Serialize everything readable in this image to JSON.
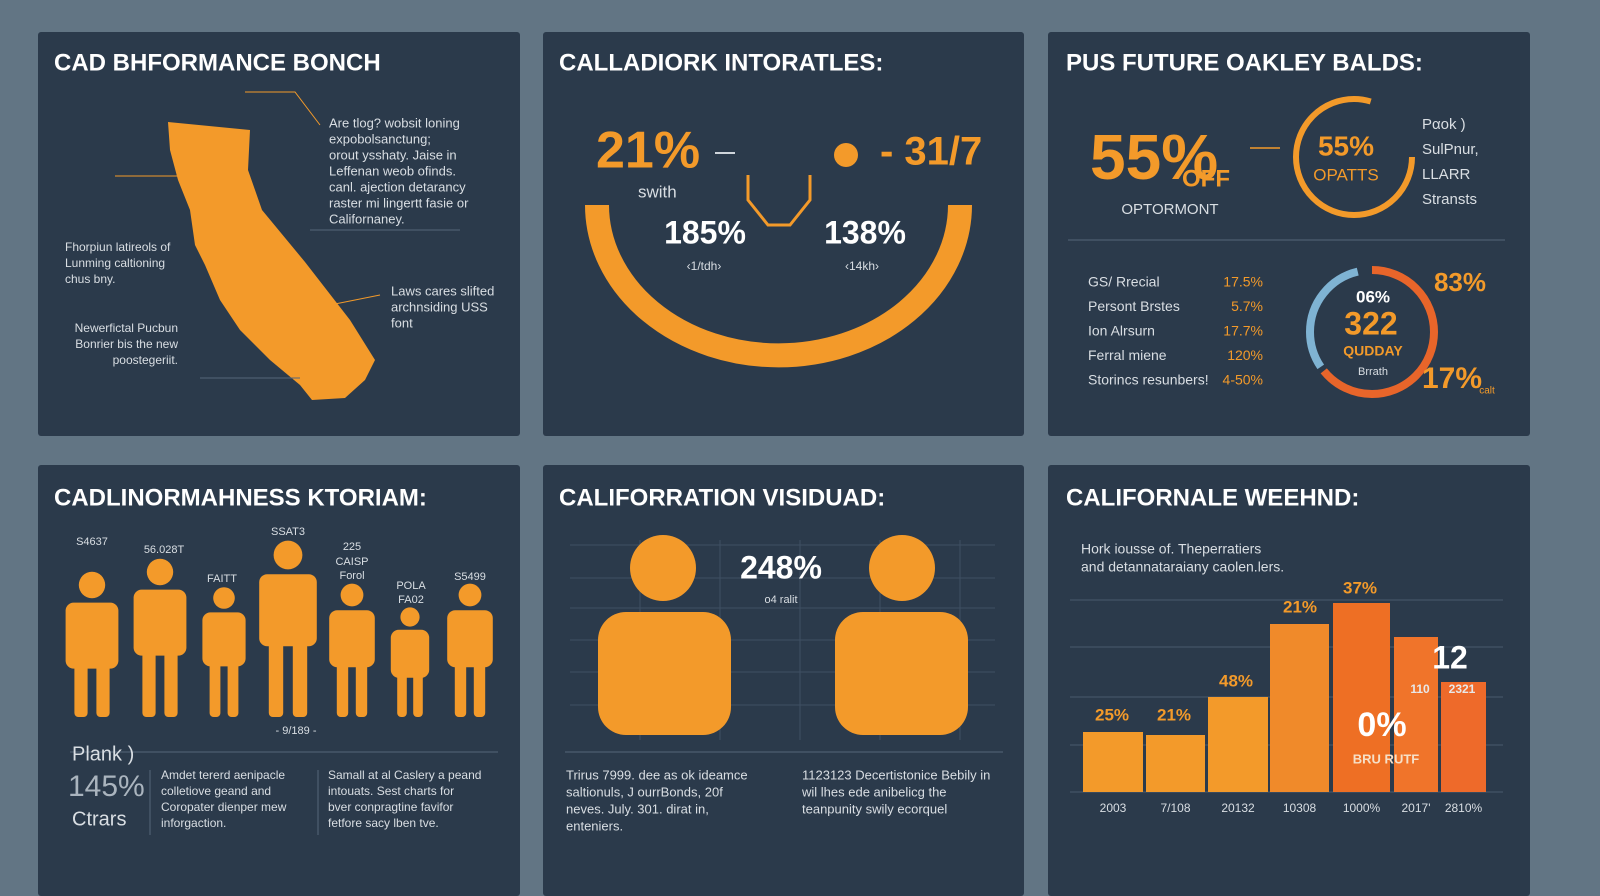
{
  "panels": [
    {
      "title": "CAD BHFORMANCE BONCH",
      "callout_top": [
        "Are tlog? wobsit loning",
        "expobolsanctung;",
        "orout ysshaty. Jaise in",
        "Leffenan weob ofinds.",
        "canl. ajection detarancy",
        "raster mi lingertt fasie or",
        "Californaney."
      ],
      "callout_left": [
        "Fhorpiun latireols of",
        "Lunming caltioning",
        "chus bny."
      ],
      "callout_right": [
        "Laws cares slifted",
        "archnsiding USS",
        "font"
      ],
      "callout_bottom": [
        "Newerfictal Pucbun",
        "Bonrier bis the new",
        "poostegeriit."
      ]
    },
    {
      "title": "CALLADIORK INTORATLES:",
      "big_left": "21%",
      "big_left_sub": "swith",
      "big_right": "- 31/7",
      "stat_left": "185%",
      "stat_left_sub": "‹1/tdh›",
      "stat_right": "138%",
      "stat_right_sub": "‹14kh›"
    },
    {
      "title": "PUS FUTURE OAKLEY BALDS:",
      "big": "55%",
      "big_off": "OFF",
      "big_label": "OPTORMONT",
      "ring_value": "55%",
      "ring_label": "OPATTS",
      "side": [
        "Pαok )",
        "SulPnur,",
        "LLARR",
        "Stransts"
      ],
      "rows": [
        [
          "GS/ Rrecial",
          "17.5%"
        ],
        [
          "Persont Brstes",
          "5.7%"
        ],
        [
          "Ion Alrsurn",
          "17.7%"
        ],
        [
          "Ferral miene",
          "120%"
        ],
        [
          "Storincs resunbers!",
          "4-50%"
        ]
      ],
      "donut_top": "83%",
      "donut_inner": "06%",
      "donut_value": "322",
      "donut_label": "QUDDAY",
      "donut_sub": "Brrath",
      "donut_bottom": "17%",
      "donut_bottom_sub": "calt"
    },
    {
      "title": "CADLINORMAHNESS KTORIAM:",
      "figure_labels": [
        "S4637",
        "56.028T",
        "FAITT",
        "SSAT3",
        "225",
        "CAISP",
        "Forol",
        "POLA",
        "FA02",
        "S5499"
      ],
      "axis_label": "- 9/189 -",
      "side": [
        "Plank )",
        "145%",
        "Ctrars"
      ],
      "text_left": [
        "Amdet tererd aenipacle",
        "colletiove geand and",
        "Coropater dienper mew",
        "inforgaction."
      ],
      "text_right": [
        "Samall at al Caslery a peand",
        "intouats. Sest charts for",
        "bver conpragtine favifor",
        "fetfore sacy lben tve."
      ]
    },
    {
      "title": "CALIFORRATION VISIDUAD:",
      "center_value": "248%",
      "center_sub": "o4 ralit",
      "text_left": [
        "Trirus 7999. dee as ok ideamce",
        "saltionuls, J ourrBonds, 20f",
        "neves. July. 301. dirat in,",
        "enteniers."
      ],
      "text_right": [
        "1123123 Decertistonice Bebily in",
        "wil lhes ede anibelicg the",
        "teanpunity swily ecorquel"
      ]
    }
  ],
  "chart_data": {
    "type": "bar",
    "title": "CALIFORNALE WEEHND:",
    "subtitle": [
      "Hork iousse of. Theperratiers",
      "and detannataraiany caolen.lers."
    ],
    "categories": [
      "2003",
      "7/108",
      "20132",
      "10308",
      "1000%",
      "2017'",
      "2810%"
    ],
    "values": [
      60,
      57,
      95,
      168,
      189,
      155,
      110
    ],
    "colors": [
      "#f39a2a",
      "#f39a2a",
      "#f39a2a",
      "#f08a2a",
      "#ee6f24",
      "#f0742a",
      "#ee6a2a"
    ],
    "ylim": [
      0,
      200
    ],
    "annotations": [
      "25%",
      "21%",
      "48%",
      "21%",
      "37%",
      "12",
      "110",
      "2321",
      "0%",
      "BRU RUTF"
    ]
  }
}
